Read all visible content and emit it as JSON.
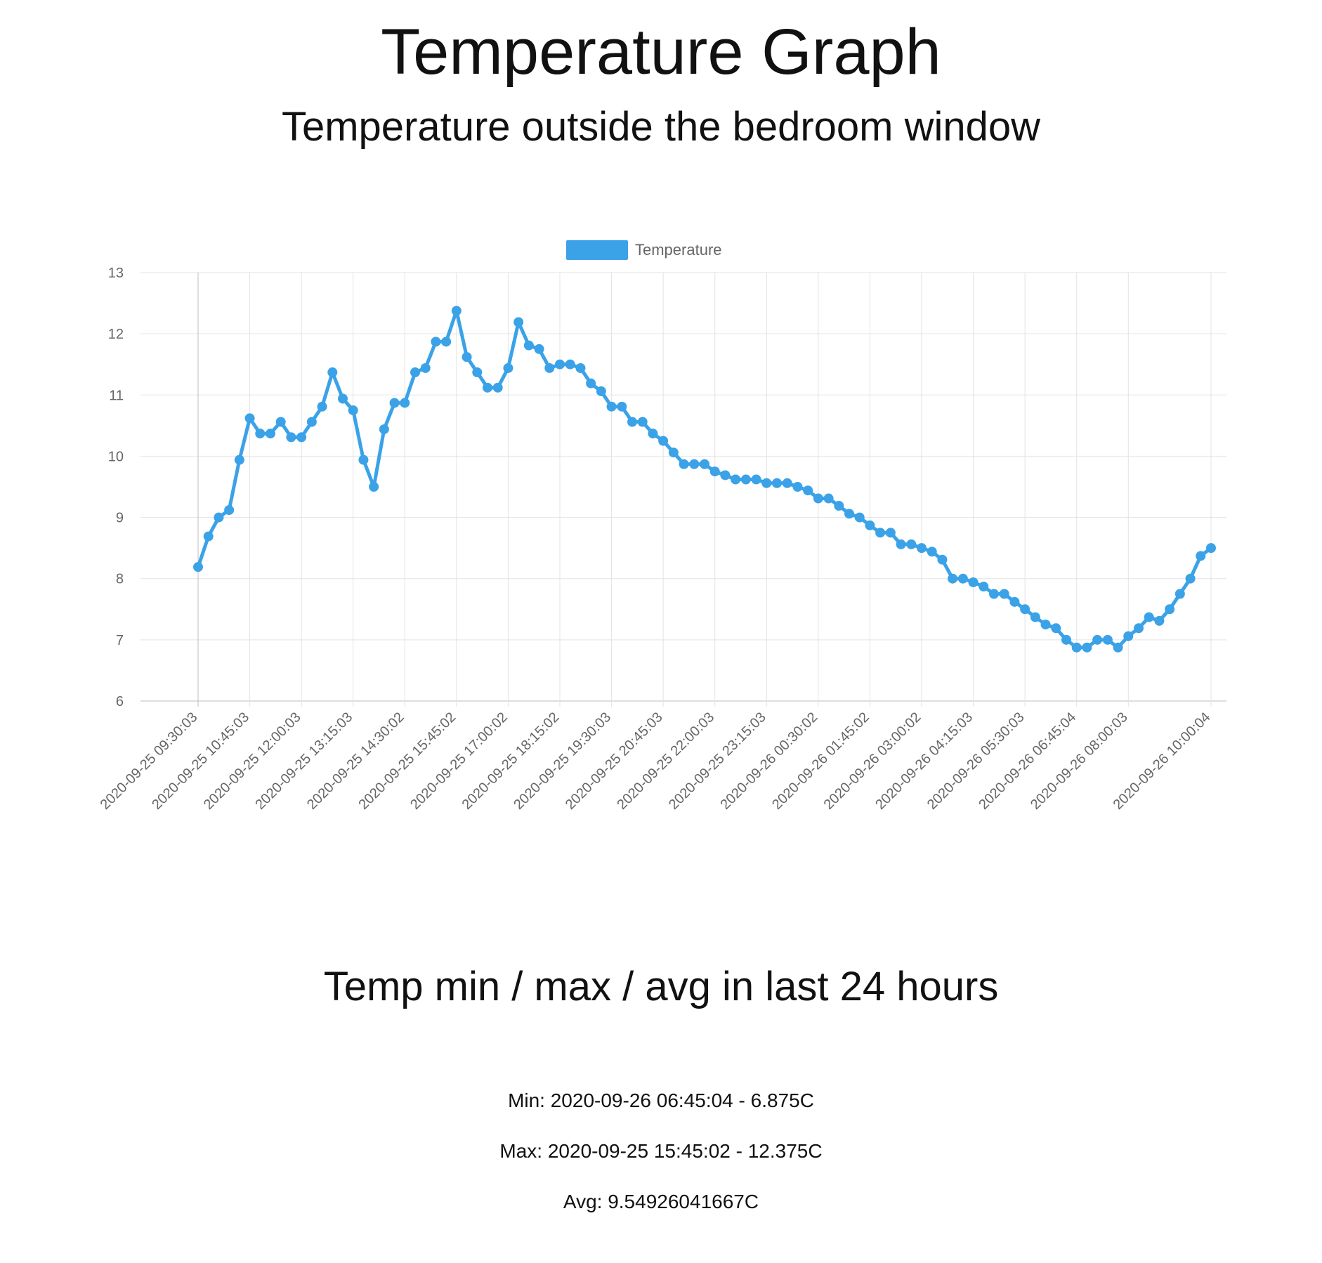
{
  "page": {
    "title": "Temperature Graph",
    "subtitle": "Temperature outside the bedroom window"
  },
  "stats": {
    "heading": "Temp min / max / avg in last 24 hours",
    "min_text": "Min: 2020-09-26 06:45:04 - 6.875C",
    "max_text": "Max: 2020-09-25 15:45:02 - 12.375C",
    "avg_text": "Avg: 9.54926041667C"
  },
  "chart_data": {
    "type": "line",
    "title": "",
    "xlabel": "",
    "ylabel": "",
    "legend_position": "top-center",
    "grid": true,
    "ylim": [
      6,
      13
    ],
    "yticks": [
      6,
      7,
      8,
      9,
      10,
      11,
      12,
      13
    ],
    "x_tick_labels": [
      "2020-09-25 09:30:03",
      "2020-09-25 10:45:03",
      "2020-09-25 12:00:03",
      "2020-09-25 13:15:03",
      "2020-09-25 14:30:02",
      "2020-09-25 15:45:02",
      "2020-09-25 17:00:02",
      "2020-09-25 18:15:02",
      "2020-09-25 19:30:03",
      "2020-09-25 20:45:03",
      "2020-09-25 22:00:03",
      "2020-09-25 23:15:03",
      "2020-09-26 00:30:02",
      "2020-09-26 01:45:02",
      "2020-09-26 03:00:02",
      "2020-09-26 04:15:03",
      "2020-09-26 05:30:03",
      "2020-09-26 06:45:04",
      "2020-09-26 08:00:03",
      "2020-09-26 10:00:04"
    ],
    "series": [
      {
        "name": "Temperature",
        "color": "#3ba2e8",
        "values": [
          8.19,
          8.69,
          9.0,
          9.12,
          9.94,
          10.62,
          10.37,
          10.37,
          10.56,
          10.31,
          10.31,
          10.56,
          10.81,
          11.37,
          10.94,
          10.75,
          9.94,
          9.5,
          10.44,
          10.87,
          10.87,
          11.37,
          11.44,
          11.87,
          11.87,
          12.375,
          11.62,
          11.37,
          11.12,
          11.12,
          11.44,
          12.19,
          11.81,
          11.75,
          11.44,
          11.5,
          11.5,
          11.44,
          11.19,
          11.06,
          10.81,
          10.81,
          10.56,
          10.56,
          10.37,
          10.25,
          10.06,
          9.87,
          9.87,
          9.87,
          9.75,
          9.69,
          9.62,
          9.62,
          9.62,
          9.56,
          9.56,
          9.56,
          9.5,
          9.44,
          9.31,
          9.31,
          9.19,
          9.06,
          9.0,
          8.87,
          8.75,
          8.75,
          8.56,
          8.56,
          8.5,
          8.44,
          8.31,
          8.0,
          8.0,
          7.94,
          7.87,
          7.75,
          7.75,
          7.62,
          7.5,
          7.37,
          7.25,
          7.19,
          7.0,
          6.875,
          6.875,
          7.0,
          7.0,
          6.875,
          7.06,
          7.19,
          7.37,
          7.31,
          7.5,
          7.75,
          8.0,
          8.37,
          8.5
        ]
      }
    ]
  }
}
